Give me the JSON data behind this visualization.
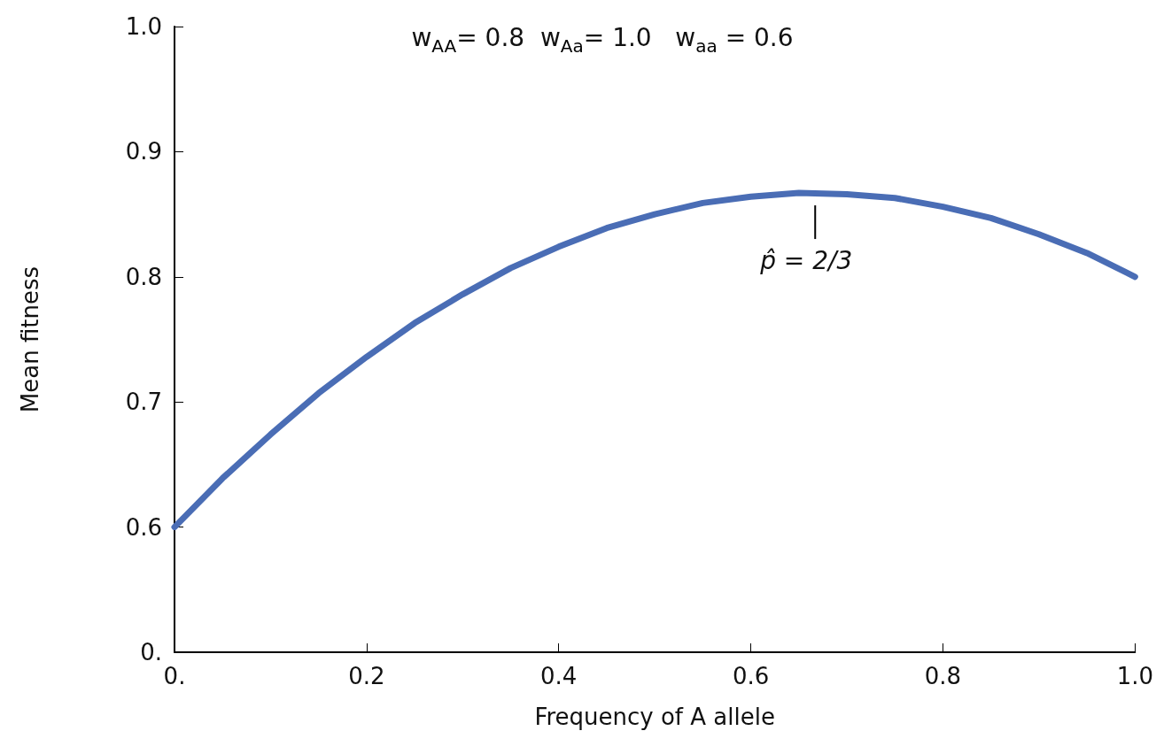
{
  "chart_data": {
    "type": "line",
    "xlabel": "Frequency of A allele",
    "ylabel": "Mean fitness",
    "x": [
      0,
      0.05,
      0.1,
      0.15,
      0.2,
      0.25,
      0.3,
      0.35,
      0.4,
      0.45,
      0.5,
      0.55,
      0.6,
      0.65,
      0.7,
      0.75,
      0.8,
      0.85,
      0.9,
      0.95,
      1
    ],
    "series": [
      {
        "color": "#4a6db5",
        "values": [
          0.6,
          0.639,
          0.674,
          0.707,
          0.736,
          0.763,
          0.786,
          0.807,
          0.824,
          0.839,
          0.85,
          0.859,
          0.864,
          0.867,
          0.866,
          0.863,
          0.856,
          0.847,
          0.834,
          0.819,
          0.8
        ]
      }
    ],
    "xlim": [
      0,
      1
    ],
    "xticks": [
      {
        "value": 0,
        "label": "0."
      },
      0.2,
      0.4,
      0.6,
      0.8,
      {
        "value": 1,
        "label": "1.0"
      }
    ],
    "ylim": [
      0.5,
      1.0
    ],
    "yticks": [
      {
        "value": 0.5,
        "label": "0."
      },
      0.6,
      0.7,
      0.8,
      0.9,
      {
        "value": 1,
        "label": "1.0"
      }
    ],
    "grid": false,
    "marker": "none",
    "line_style": "solid",
    "annotations": [
      "w$_{AA}$= 0.8  w$_{Aa}$= 1.0   w$_{aa}$ = 0.6",
      {
        "text": "p̂ = 2/3",
        "x": 0.667,
        "y": 0.867
      }
    ]
  }
}
